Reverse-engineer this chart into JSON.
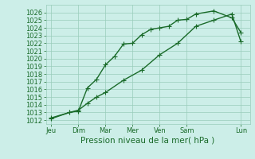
{
  "background_color": "#cceee8",
  "grid_color": "#99ccbb",
  "line_color": "#1a6b2a",
  "xlabel": "Pression niveau de la mer( hPa )",
  "ylim": [
    1011.5,
    1027.0
  ],
  "yticks": [
    1012,
    1013,
    1014,
    1015,
    1016,
    1017,
    1018,
    1019,
    1020,
    1021,
    1022,
    1023,
    1024,
    1025,
    1026
  ],
  "xtick_labels": [
    "Jeu",
    "Dim",
    "Mar",
    "Mer",
    "Ven",
    "Sam",
    "Lun"
  ],
  "xtick_positions": [
    0,
    1.5,
    3,
    4.5,
    6,
    7.5,
    10.5
  ],
  "line1_x": [
    0,
    1.0,
    1.5,
    2.0,
    2.5,
    3.0,
    3.5,
    4.0,
    4.5,
    5.0,
    5.5,
    6.0,
    6.5,
    7.0,
    7.5,
    8.0,
    9.0,
    10.0,
    10.5
  ],
  "line1_y": [
    1012.3,
    1013.0,
    1013.2,
    1016.2,
    1017.3,
    1019.2,
    1020.3,
    1021.9,
    1022.0,
    1023.1,
    1023.8,
    1024.0,
    1024.2,
    1025.0,
    1025.1,
    1025.8,
    1026.2,
    1025.3,
    1023.4
  ],
  "line2_x": [
    0,
    1.0,
    1.5,
    2.0,
    2.5,
    3.0,
    4.0,
    5.0,
    6.0,
    7.0,
    8.0,
    9.0,
    10.0,
    10.5
  ],
  "line2_y": [
    1012.2,
    1013.0,
    1013.3,
    1014.2,
    1015.0,
    1015.6,
    1017.2,
    1018.5,
    1020.5,
    1022.0,
    1024.2,
    1025.0,
    1025.8,
    1022.2
  ],
  "xlim": [
    -0.3,
    11.0
  ],
  "marker": "+",
  "marker_size": 4,
  "line_width": 1.0,
  "xlabel_fontsize": 7.5,
  "tick_fontsize": 6.0
}
